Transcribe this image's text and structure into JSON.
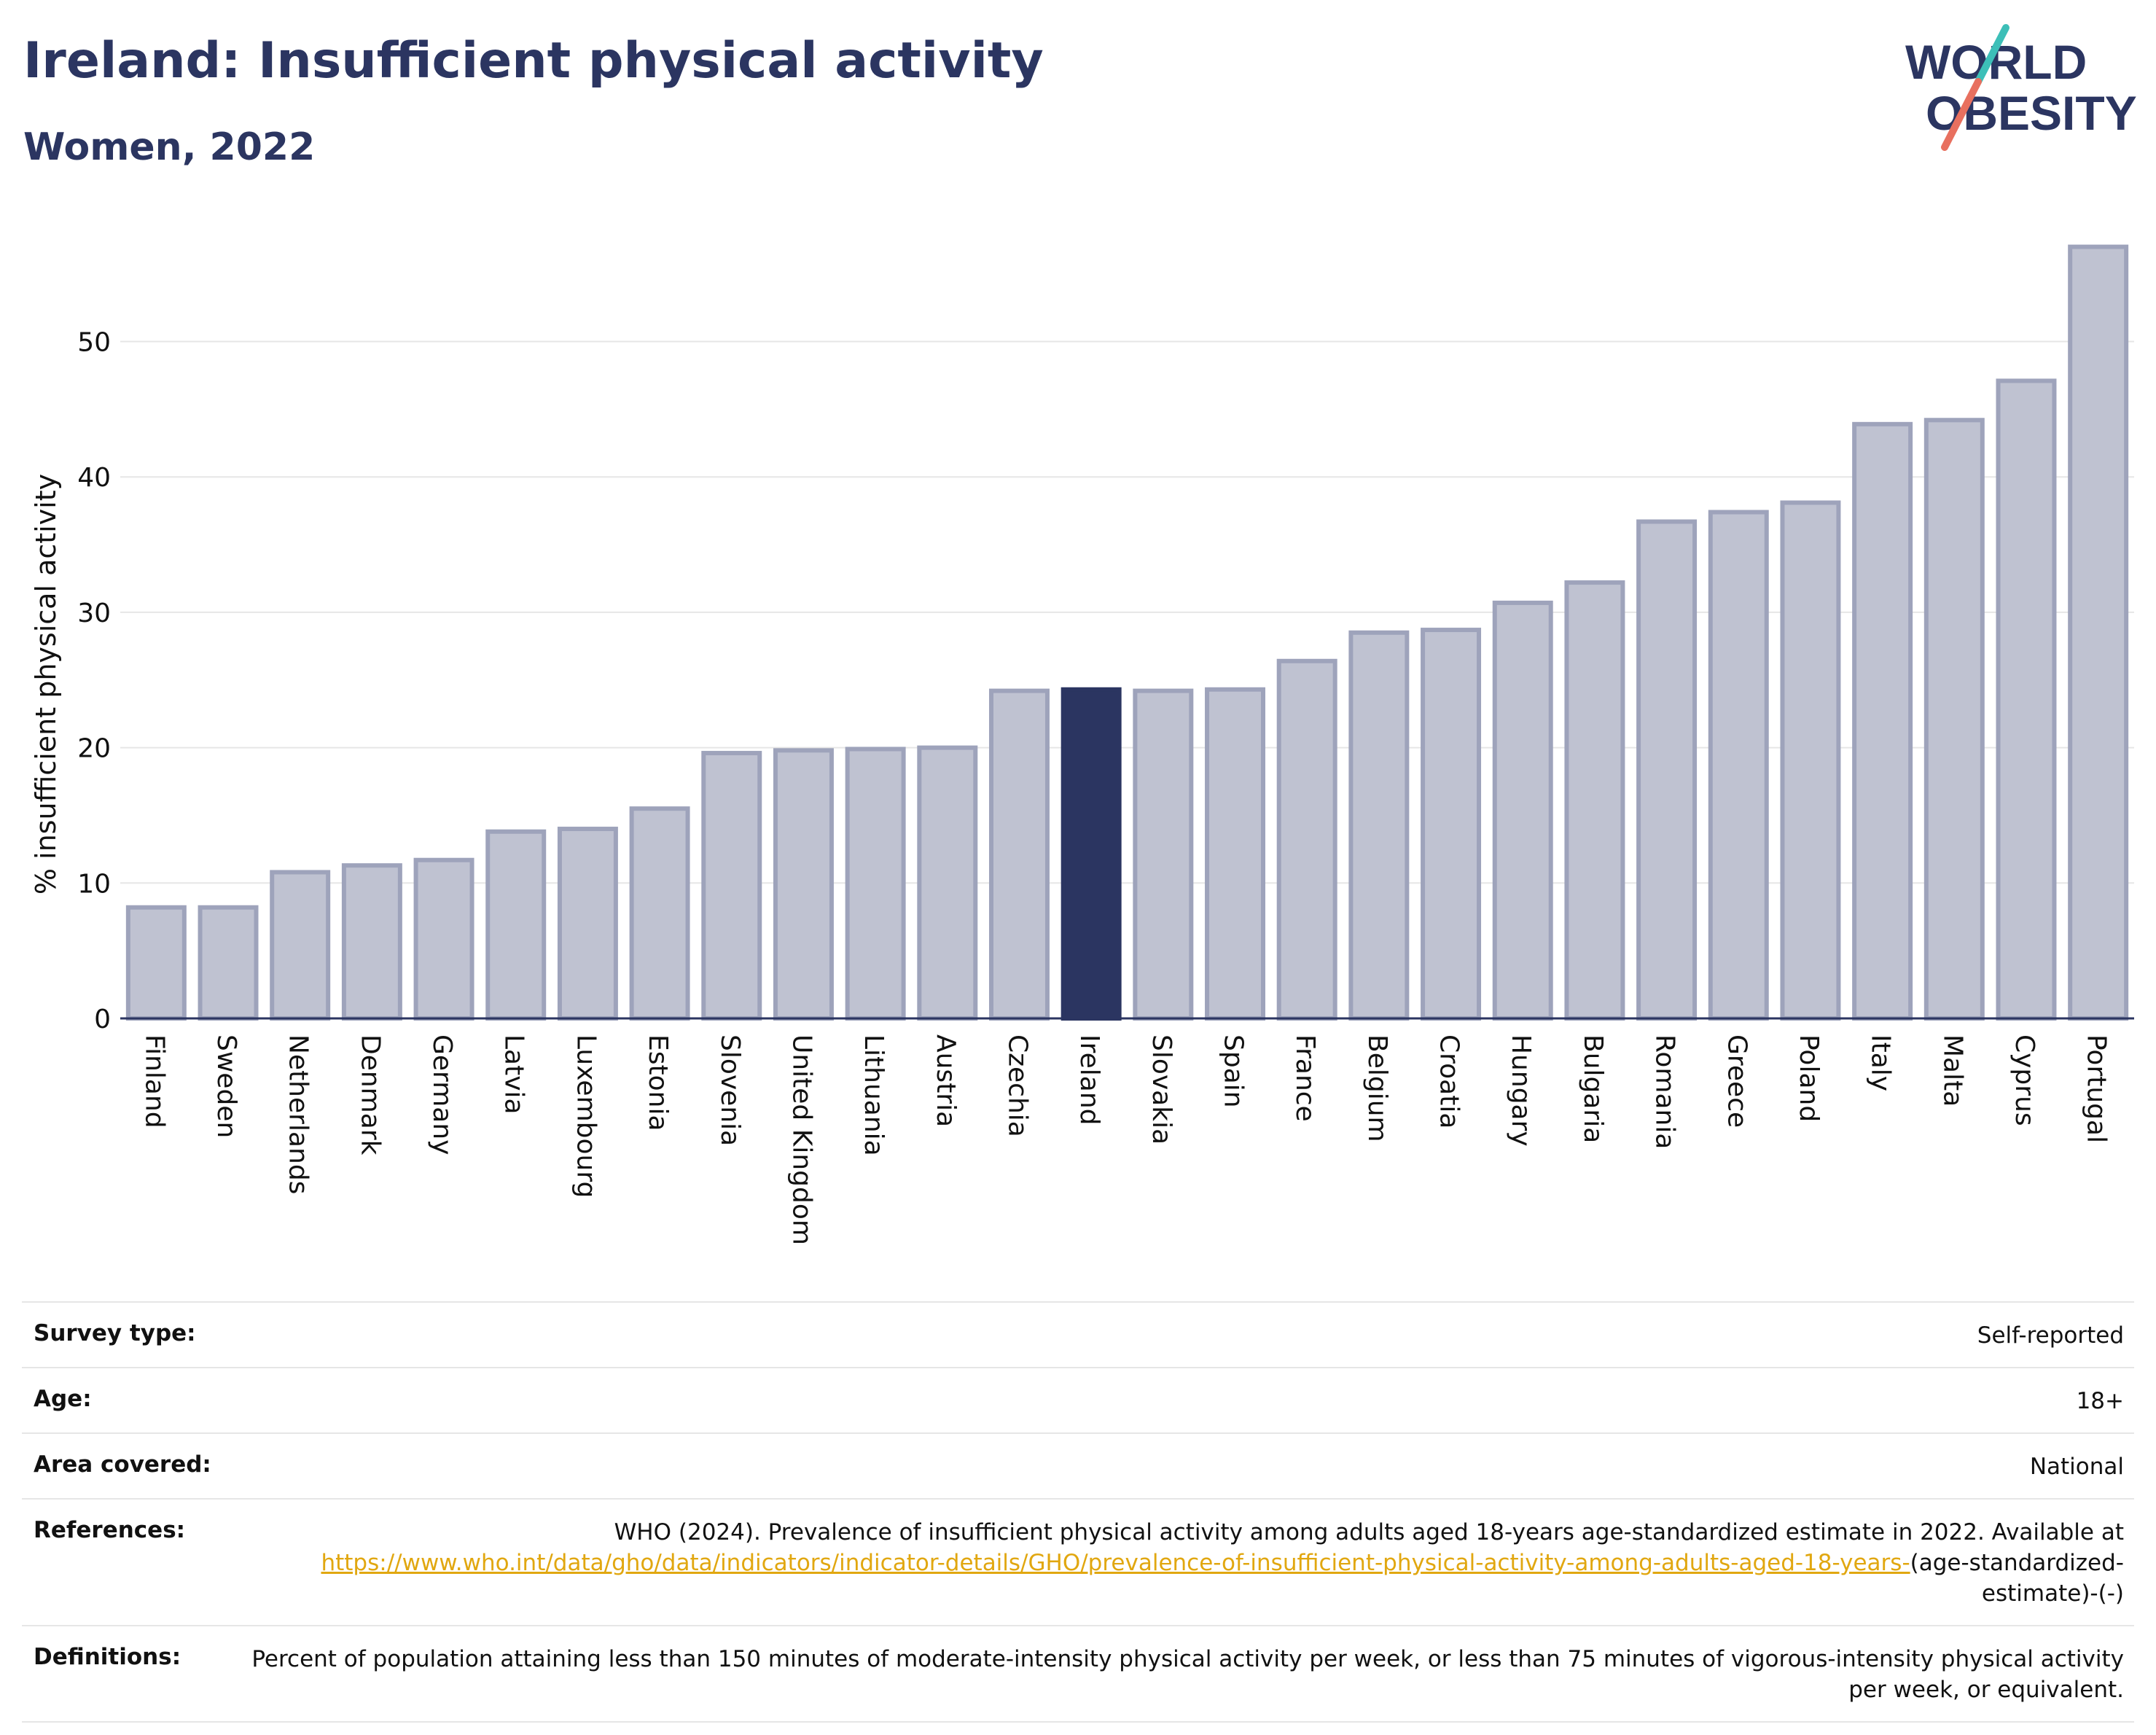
{
  "header": {
    "title": "Ireland: Insufficient physical activity",
    "subtitle": "Women, 2022"
  },
  "logo": {
    "line1": "WORLD",
    "line2": "OBESITY",
    "colors": {
      "text": "#2b3561",
      "slash_teal": "#3dbfb8",
      "slash_coral": "#e8705f"
    }
  },
  "chart_data": {
    "type": "bar",
    "ylabel": "% insufficient physical activity",
    "xlabel": "",
    "ylim": [
      0,
      58
    ],
    "yticks": [
      0,
      10,
      20,
      30,
      40,
      50
    ],
    "grid": true,
    "highlight": "Ireland",
    "colors": {
      "bar": "#bfc2d1",
      "bar_edge": "#9ea3bb",
      "highlight": "#2b3561",
      "grid": "#e6e6e6"
    },
    "categories": [
      "Finland",
      "Sweden",
      "Netherlands",
      "Denmark",
      "Germany",
      "Latvia",
      "Luxembourg",
      "Estonia",
      "Slovenia",
      "United Kingdom",
      "Lithuania",
      "Austria",
      "Czechia",
      "Ireland",
      "Slovakia",
      "Spain",
      "France",
      "Belgium",
      "Croatia",
      "Hungary",
      "Bulgaria",
      "Romania",
      "Greece",
      "Poland",
      "Italy",
      "Malta",
      "Cyprus",
      "Portugal"
    ],
    "values": [
      8.2,
      8.2,
      10.8,
      11.3,
      11.7,
      13.8,
      14.0,
      15.5,
      19.6,
      19.8,
      19.9,
      20.0,
      24.2,
      24.3,
      24.2,
      24.3,
      26.4,
      28.5,
      28.7,
      30.7,
      32.2,
      36.7,
      37.4,
      38.1,
      43.9,
      44.2,
      47.1,
      57.0
    ]
  },
  "metadata": [
    {
      "label": "Survey type:",
      "value": "Self-reported"
    },
    {
      "label": "Age:",
      "value": "18+"
    },
    {
      "label": "Area covered:",
      "value": "National"
    },
    {
      "label": "References:",
      "value_prefix": "WHO (2024). Prevalence of insufficient physical activity among adults aged 18-years age-standardized estimate in 2022. Available at",
      "link": "https://www.who.int/data/gho/data/indicators/indicator-details/GHO/prevalence-of-insufficient-physical-activity-among-adults-aged-18-years-",
      "value_suffix": "(age-standardized-estimate)-(-)"
    },
    {
      "label": "Definitions:",
      "value": "Percent of population attaining less than 150 minutes of moderate-intensity physical activity per week, or less than 75 minutes of vigorous-intensity physical activity per week, or equivalent."
    }
  ]
}
